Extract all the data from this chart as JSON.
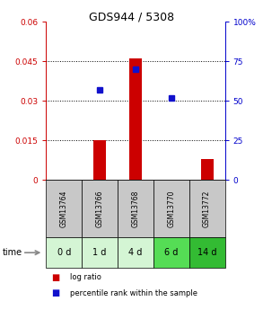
{
  "title": "GDS944 / 5308",
  "samples": [
    "GSM13764",
    "GSM13766",
    "GSM13768",
    "GSM13770",
    "GSM13772"
  ],
  "time_labels": [
    "0 d",
    "1 d",
    "4 d",
    "6 d",
    "14 d"
  ],
  "log_ratio": [
    0.0,
    0.015,
    0.046,
    0.0,
    0.008
  ],
  "percentile_rank_left_scale": [
    null,
    0.034,
    0.042,
    0.031,
    null
  ],
  "ylim_left": [
    0,
    0.06
  ],
  "ylim_right": [
    0,
    100
  ],
  "yticks_left": [
    0,
    0.015,
    0.03,
    0.045,
    0.06
  ],
  "ytick_labels_left": [
    "0",
    "0.015",
    "0.03",
    "0.045",
    "0.06"
  ],
  "yticks_right": [
    0,
    25,
    50,
    75,
    100
  ],
  "ytick_labels_right": [
    "0",
    "25",
    "50",
    "75",
    "100%"
  ],
  "bar_color": "#cc0000",
  "dot_color": "#1111cc",
  "sample_box_color": "#c8c8c8",
  "time_box_colors": [
    "#d4f5d4",
    "#d4f5d4",
    "#d4f5d4",
    "#55dd55",
    "#33bb33"
  ],
  "bar_width": 0.35,
  "title_fontsize": 9
}
